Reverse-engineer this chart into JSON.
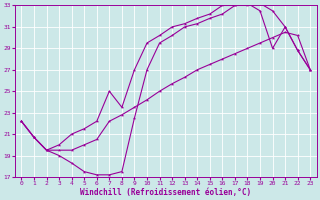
{
  "xlabel": "Windchill (Refroidissement éolien,°C)",
  "bg_color": "#cce8e8",
  "grid_color": "#aacccc",
  "line_color": "#990099",
  "xlim": [
    -0.5,
    23.5
  ],
  "ylim": [
    17,
    33
  ],
  "xticks": [
    0,
    1,
    2,
    3,
    4,
    5,
    6,
    7,
    8,
    9,
    10,
    11,
    12,
    13,
    14,
    15,
    16,
    17,
    18,
    19,
    20,
    21,
    22,
    23
  ],
  "yticks": [
    17,
    19,
    21,
    23,
    25,
    27,
    29,
    31,
    33
  ],
  "series1_x": [
    0,
    1,
    2,
    3,
    4,
    5,
    6,
    7,
    8,
    9,
    10,
    11,
    12,
    13,
    14,
    15,
    16,
    17,
    18,
    19,
    20,
    21,
    22,
    23
  ],
  "series1_y": [
    22.2,
    20.7,
    19.5,
    19.0,
    18.3,
    17.5,
    17.2,
    17.2,
    17.5,
    22.5,
    27.0,
    29.5,
    30.2,
    31.0,
    31.3,
    31.8,
    32.2,
    33.0,
    33.0,
    33.2,
    32.5,
    31.0,
    28.8,
    27.0
  ],
  "series2_x": [
    0,
    1,
    2,
    3,
    4,
    5,
    6,
    7,
    8,
    9,
    10,
    11,
    12,
    13,
    14,
    15,
    16,
    17,
    18,
    19,
    20,
    21,
    22,
    23
  ],
  "series2_y": [
    22.2,
    20.7,
    19.5,
    19.5,
    19.5,
    20.0,
    20.5,
    22.2,
    22.8,
    23.5,
    24.2,
    25.0,
    25.7,
    26.3,
    27.0,
    27.5,
    28.0,
    28.5,
    29.0,
    29.5,
    30.0,
    30.5,
    30.2,
    27.0
  ],
  "series3_x": [
    0,
    1,
    2,
    3,
    4,
    5,
    6,
    7,
    8,
    9,
    10,
    11,
    12,
    13,
    14,
    15,
    16,
    17,
    18,
    19,
    20,
    21,
    22,
    23
  ],
  "series3_y": [
    22.2,
    20.7,
    19.5,
    20.0,
    21.0,
    21.5,
    22.2,
    25.0,
    23.5,
    27.0,
    29.5,
    30.2,
    31.0,
    31.3,
    31.8,
    32.2,
    33.0,
    33.0,
    33.2,
    32.5,
    29.0,
    31.0,
    28.8,
    27.0
  ]
}
